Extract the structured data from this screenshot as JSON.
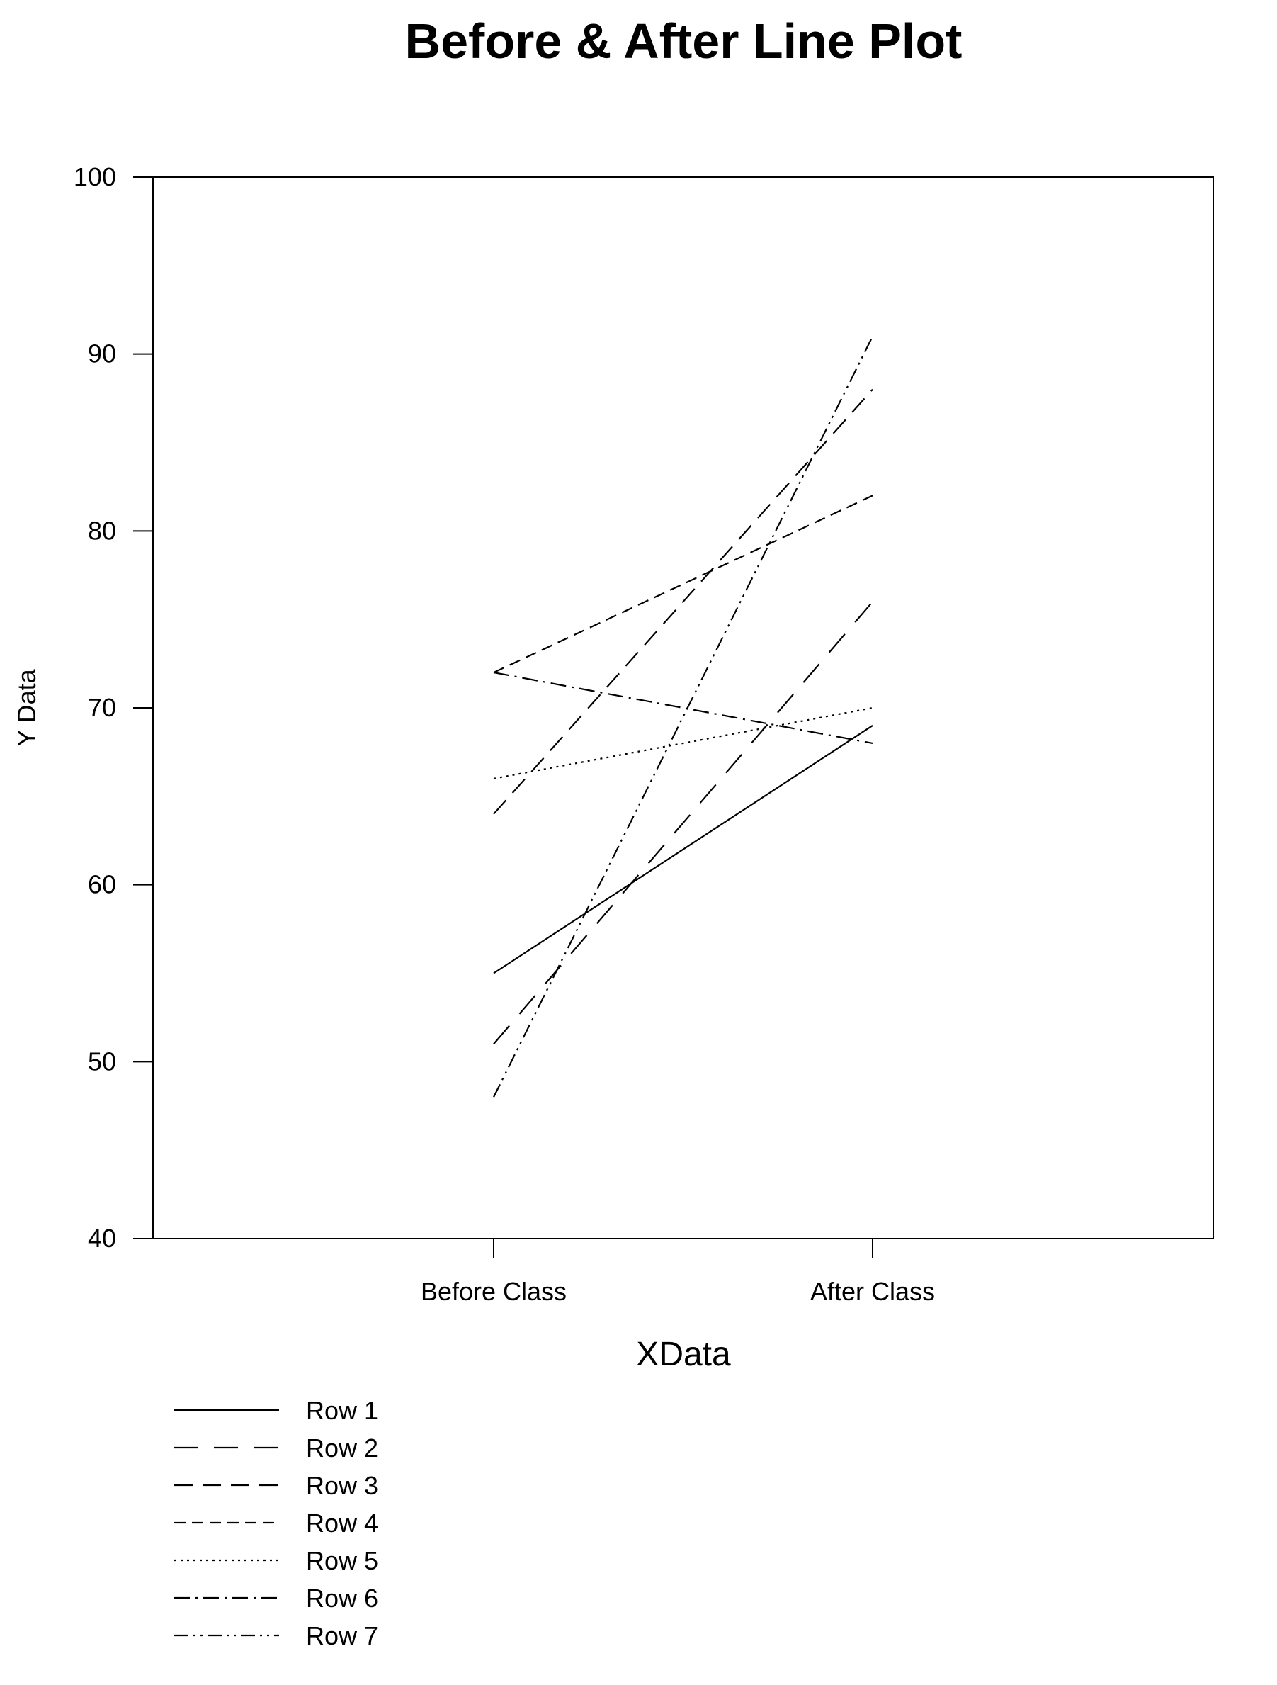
{
  "chart_data": {
    "type": "line",
    "title": "Before & After Line Plot",
    "xlabel": "XData",
    "ylabel": "Y Data",
    "categories": [
      "Before Class",
      "After Class"
    ],
    "ylim": [
      40,
      100
    ],
    "yticks": [
      "40",
      "50",
      "60",
      "70",
      "80",
      "90",
      "100"
    ],
    "grid": false,
    "legend_position": "bottom-left",
    "series": [
      {
        "name": "Row 1",
        "values": [
          55,
          69
        ],
        "dash": "solid"
      },
      {
        "name": "Row 2",
        "values": [
          51,
          76
        ],
        "dash": "long-dash"
      },
      {
        "name": "Row 3",
        "values": [
          64,
          88
        ],
        "dash": "medium-dash"
      },
      {
        "name": "Row 4",
        "values": [
          72,
          82
        ],
        "dash": "short-dash"
      },
      {
        "name": "Row 5",
        "values": [
          66,
          70
        ],
        "dash": "dotted"
      },
      {
        "name": "Row 6",
        "values": [
          72,
          68
        ],
        "dash": "dash-dot"
      },
      {
        "name": "Row 7",
        "values": [
          48,
          91
        ],
        "dash": "dash-dot-dot"
      }
    ],
    "line_color": "#000000"
  }
}
